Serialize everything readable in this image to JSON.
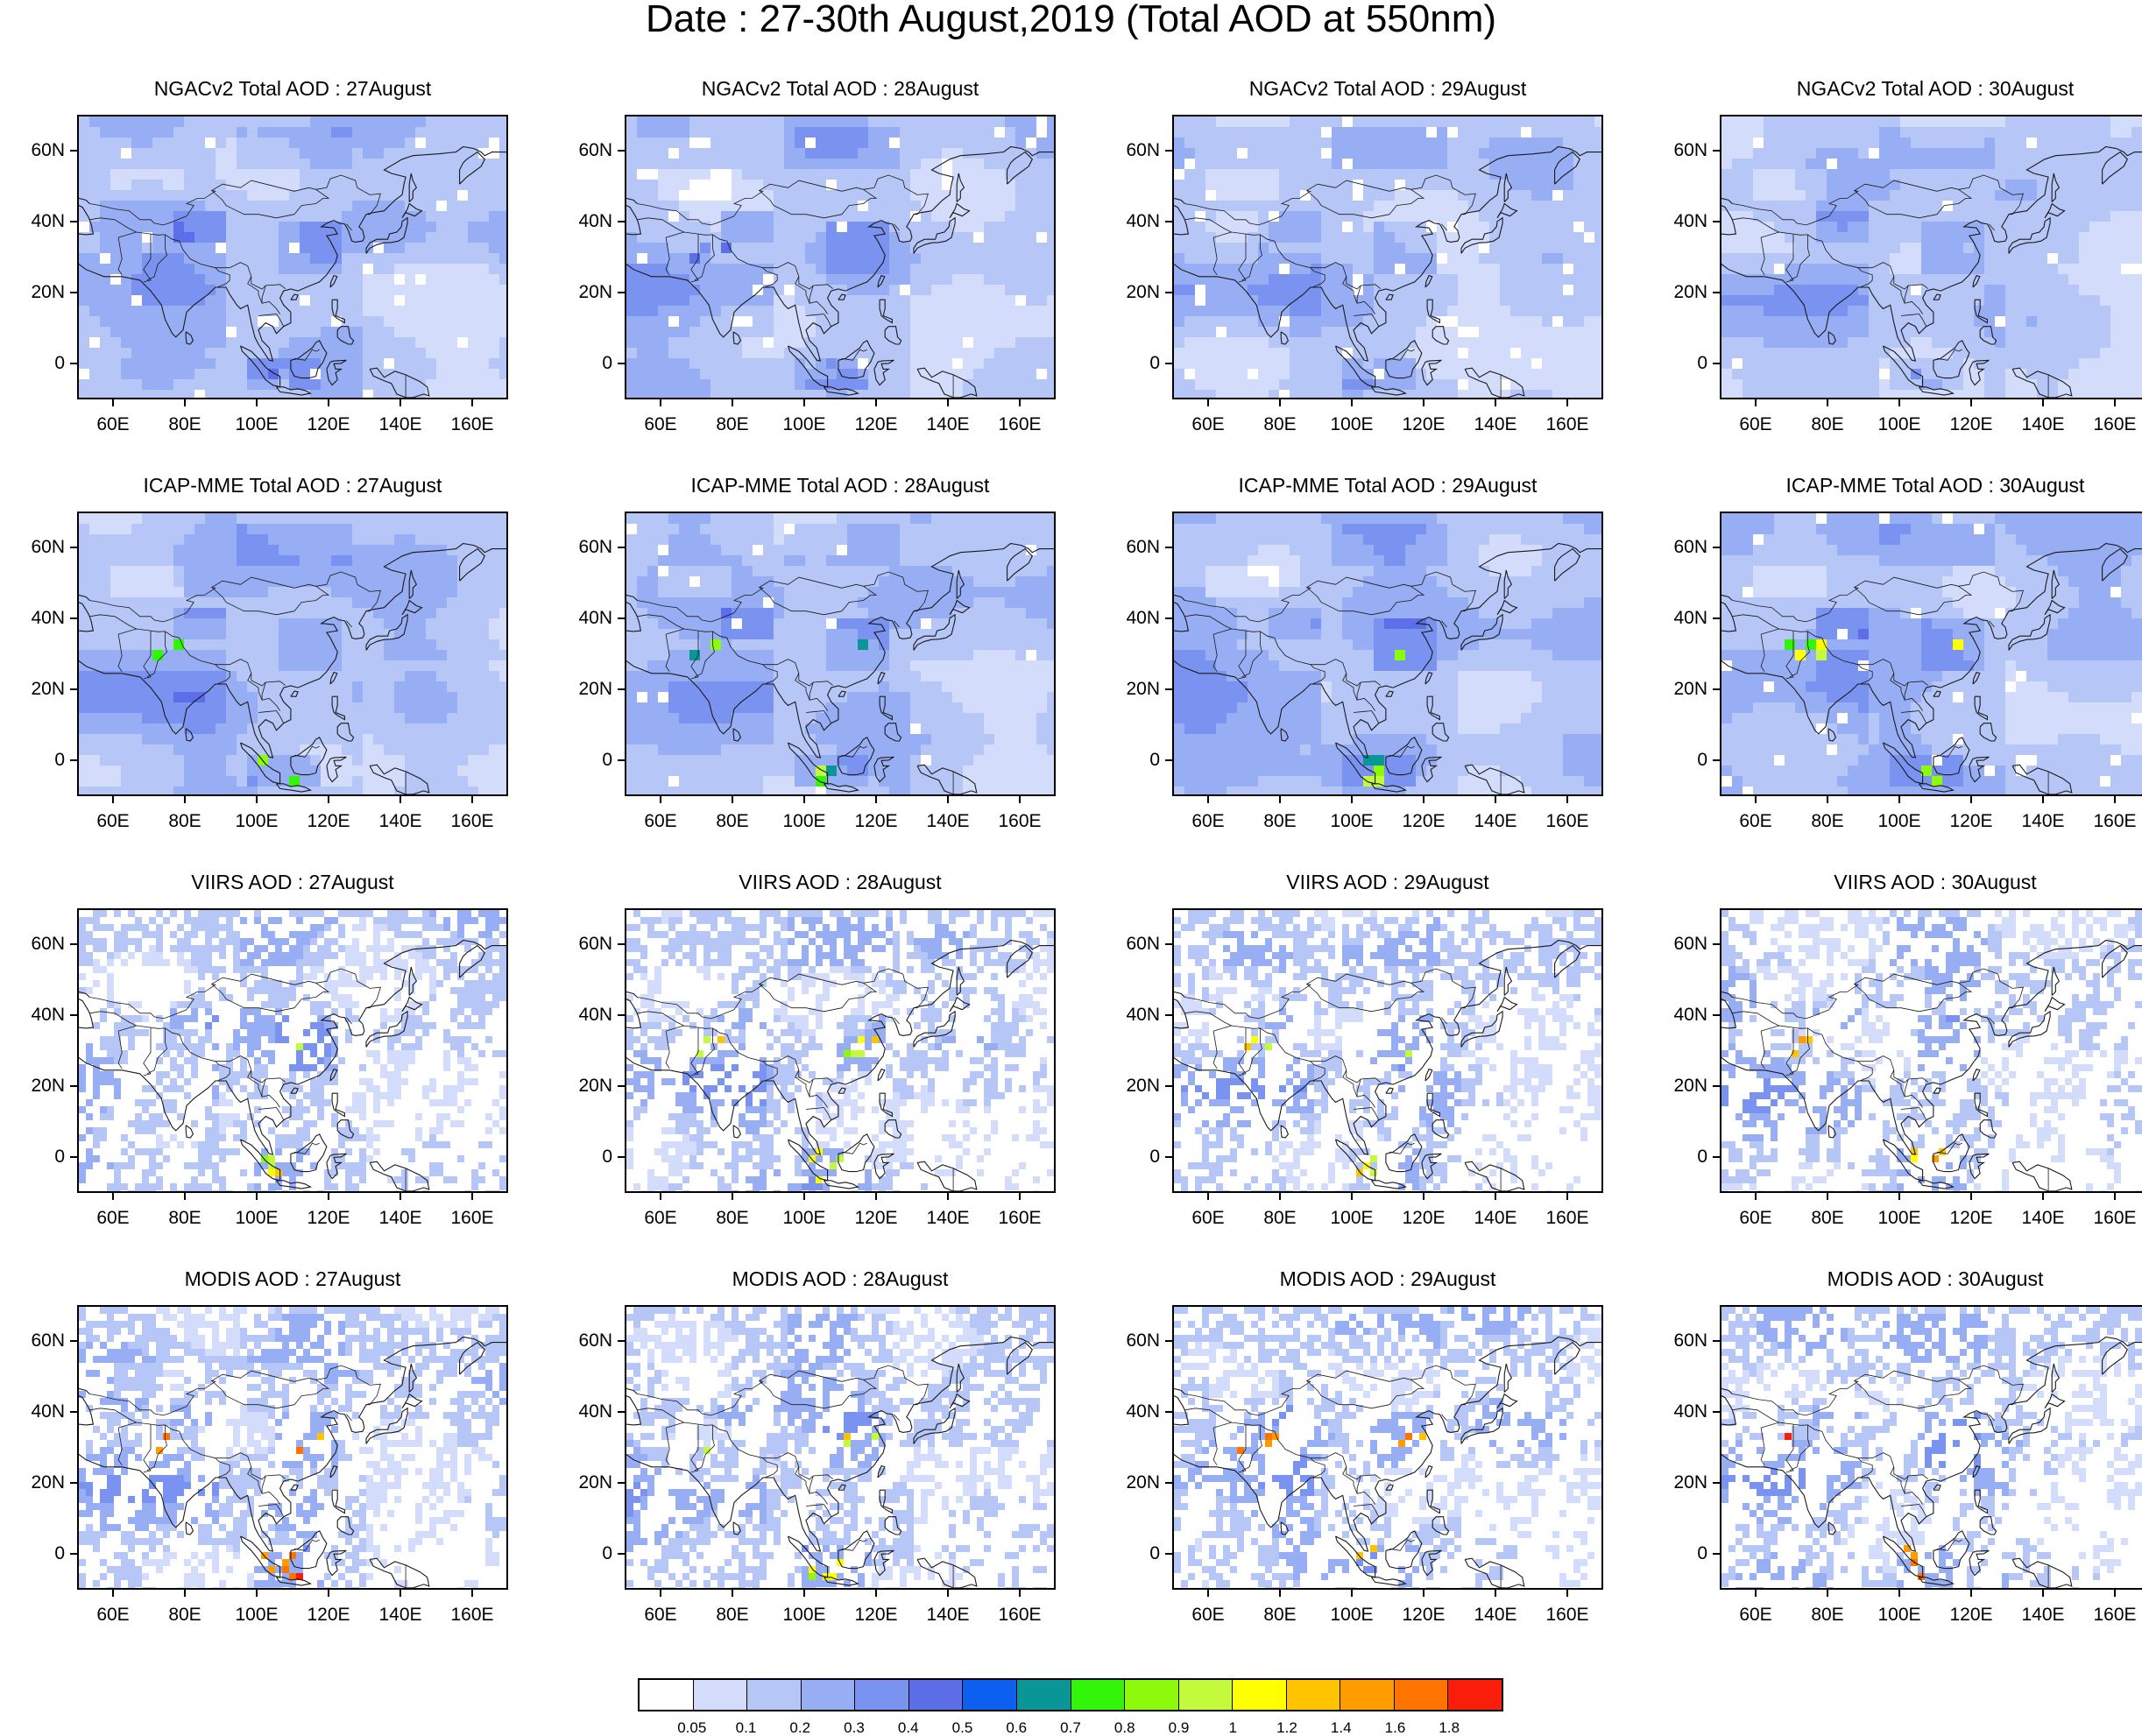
{
  "title": "Date : 27-30th August,2019 (Total AOD at 550nm)",
  "panels": [
    {
      "title": "NGACv2 Total AOD : 27August",
      "product": "NGACv2",
      "day": 27,
      "coverage": 0.97,
      "mean_level": 2.2,
      "hotspot_level": 5
    },
    {
      "title": "NGACv2 Total AOD : 28August",
      "product": "NGACv2",
      "day": 28,
      "coverage": 0.97,
      "mean_level": 2.0,
      "hotspot_level": 5
    },
    {
      "title": "NGACv2 Total AOD : 29August",
      "product": "NGACv2",
      "day": 29,
      "coverage": 0.96,
      "mean_level": 1.9,
      "hotspot_level": 4
    },
    {
      "title": "NGACv2 Total AOD : 30August",
      "product": "NGACv2",
      "day": 30,
      "coverage": 0.98,
      "mean_level": 2.0,
      "hotspot_level": 4
    },
    {
      "title": "ICAP-MME Total AOD : 27August",
      "product": "ICAP-MME",
      "day": 27,
      "coverage": 1.0,
      "mean_level": 2.3,
      "hotspot_level": 10
    },
    {
      "title": "ICAP-MME Total AOD : 28August",
      "product": "ICAP-MME",
      "day": 28,
      "coverage": 0.99,
      "mean_level": 2.3,
      "hotspot_level": 10
    },
    {
      "title": "ICAP-MME Total AOD : 29August",
      "product": "ICAP-MME",
      "day": 29,
      "coverage": 1.0,
      "mean_level": 2.3,
      "hotspot_level": 10
    },
    {
      "title": "ICAP-MME Total AOD : 30August",
      "product": "ICAP-MME",
      "day": 30,
      "coverage": 0.97,
      "mean_level": 2.3,
      "hotspot_level": 11
    },
    {
      "title": "VIIRS AOD : 27August",
      "product": "VIIRS",
      "day": 27,
      "coverage": 0.62,
      "mean_level": 1.8,
      "hotspot_level": 12
    },
    {
      "title": "VIIRS AOD : 28August",
      "product": "VIIRS",
      "day": 28,
      "coverage": 0.58,
      "mean_level": 1.8,
      "hotspot_level": 12
    },
    {
      "title": "VIIRS AOD : 29August",
      "product": "VIIRS",
      "day": 29,
      "coverage": 0.55,
      "mean_level": 1.8,
      "hotspot_level": 12
    },
    {
      "title": "VIIRS AOD : 30August",
      "product": "VIIRS",
      "day": 30,
      "coverage": 0.52,
      "mean_level": 1.8,
      "hotspot_level": 14
    },
    {
      "title": "MODIS AOD : 27August",
      "product": "MODIS",
      "day": 27,
      "coverage": 0.64,
      "mean_level": 1.9,
      "hotspot_level": 15
    },
    {
      "title": "MODIS AOD : 28August",
      "product": "MODIS",
      "day": 28,
      "coverage": 0.6,
      "mean_level": 1.9,
      "hotspot_level": 12
    },
    {
      "title": "MODIS AOD : 29August",
      "product": "MODIS",
      "day": 29,
      "coverage": 0.55,
      "mean_level": 1.9,
      "hotspot_level": 15
    },
    {
      "title": "MODIS AOD : 30August",
      "product": "MODIS",
      "day": 30,
      "coverage": 0.5,
      "mean_level": 1.9,
      "hotspot_level": 15
    }
  ],
  "axes": {
    "lat_ticks": [
      "60N",
      "40N",
      "20N",
      "0"
    ],
    "lat_values": [
      60,
      40,
      20,
      0
    ],
    "lon_ticks": [
      "60E",
      "80E",
      "100E",
      "120E",
      "140E",
      "160E"
    ],
    "lon_values": [
      60,
      80,
      100,
      120,
      140,
      160
    ],
    "lon_range": [
      50,
      170
    ],
    "lat_range": [
      -10,
      70
    ]
  },
  "colorbar": {
    "labels": [
      "0.05",
      "0.1",
      "0.2",
      "0.3",
      "0.4",
      "0.5",
      "0.6",
      "0.7",
      "0.8",
      "0.9",
      "1",
      "1.2",
      "1.4",
      "1.6",
      "1.8"
    ],
    "colors": [
      "#ffffff",
      "#d3ddfb",
      "#b5c6f7",
      "#97aef4",
      "#7a92f0",
      "#5c6fe9",
      "#0d5ff0",
      "#0a9697",
      "#32f50a",
      "#8cfa0a",
      "#c4fa3c",
      "#ffff00",
      "#ffc300",
      "#ff9d00",
      "#ff7300",
      "#fa1e0a"
    ]
  }
}
